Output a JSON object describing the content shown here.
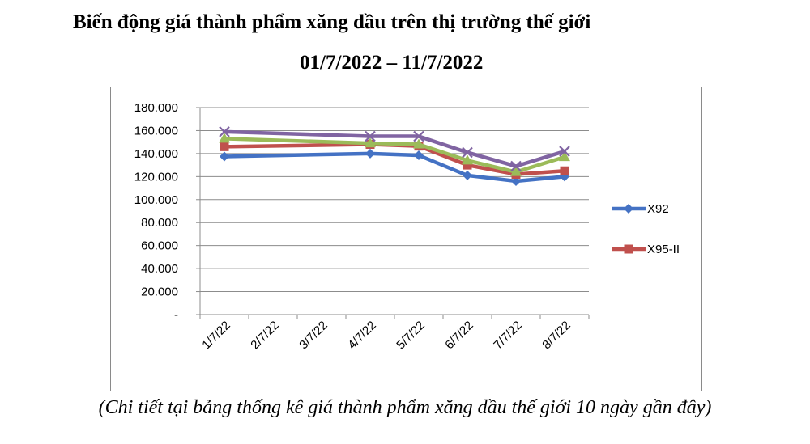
{
  "title_line1": "Biến động giá thành phẩm xăng dầu trên thị trường thế giới",
  "title_line2": "01/7/2022 – 11/7/2022",
  "caption": "(Chi tiết tại bảng thống kê giá thành phẩm xăng dầu thế giới 10 ngày gần đây)",
  "chart_data": {
    "type": "line",
    "categories": [
      "1/7/22",
      "2/7/22",
      "3/7/22",
      "4/7/22",
      "5/7/22",
      "6/7/22",
      "7/7/22",
      "8/7/22"
    ],
    "ylim": [
      0,
      180000
    ],
    "yticks": [
      0,
      20000,
      40000,
      60000,
      80000,
      100000,
      120000,
      140000,
      160000,
      180000
    ],
    "ytick_labels": [
      "-",
      "20.000",
      "40.000",
      "60.000",
      "80.000",
      "100.000",
      "120.000",
      "140.000",
      "160.000",
      "180.000"
    ],
    "grid": "horizontal",
    "legend_position": "right",
    "series": [
      {
        "name": "X92",
        "color": "#4472c4",
        "marker": "diamond",
        "in_legend": true,
        "points": [
          [
            "1/7/22",
            137500
          ],
          [
            "4/7/22",
            140000
          ],
          [
            "5/7/22",
            138500
          ],
          [
            "6/7/22",
            121000
          ],
          [
            "7/7/22",
            116000
          ],
          [
            "8/7/22",
            120000
          ]
        ]
      },
      {
        "name": "X95-II",
        "color": "#c0504d",
        "marker": "square",
        "in_legend": true,
        "points": [
          [
            "1/7/22",
            146000
          ],
          [
            "4/7/22",
            148000
          ],
          [
            "5/7/22",
            146500
          ],
          [
            "6/7/22",
            130000
          ],
          [
            "7/7/22",
            122000
          ],
          [
            "8/7/22",
            125000
          ]
        ]
      },
      {
        "name": "",
        "color": "#9bbb59",
        "marker": "triangle",
        "in_legend": false,
        "points": [
          [
            "1/7/22",
            153000
          ],
          [
            "4/7/22",
            149000
          ],
          [
            "5/7/22",
            148000
          ],
          [
            "6/7/22",
            134000
          ],
          [
            "7/7/22",
            124000
          ],
          [
            "8/7/22",
            137000
          ]
        ]
      },
      {
        "name": "",
        "color": "#8064a2",
        "marker": "x",
        "in_legend": false,
        "points": [
          [
            "1/7/22",
            159000
          ],
          [
            "4/7/22",
            155000
          ],
          [
            "5/7/22",
            155000
          ],
          [
            "6/7/22",
            141000
          ],
          [
            "7/7/22",
            129000
          ],
          [
            "8/7/22",
            142000
          ]
        ]
      }
    ]
  }
}
